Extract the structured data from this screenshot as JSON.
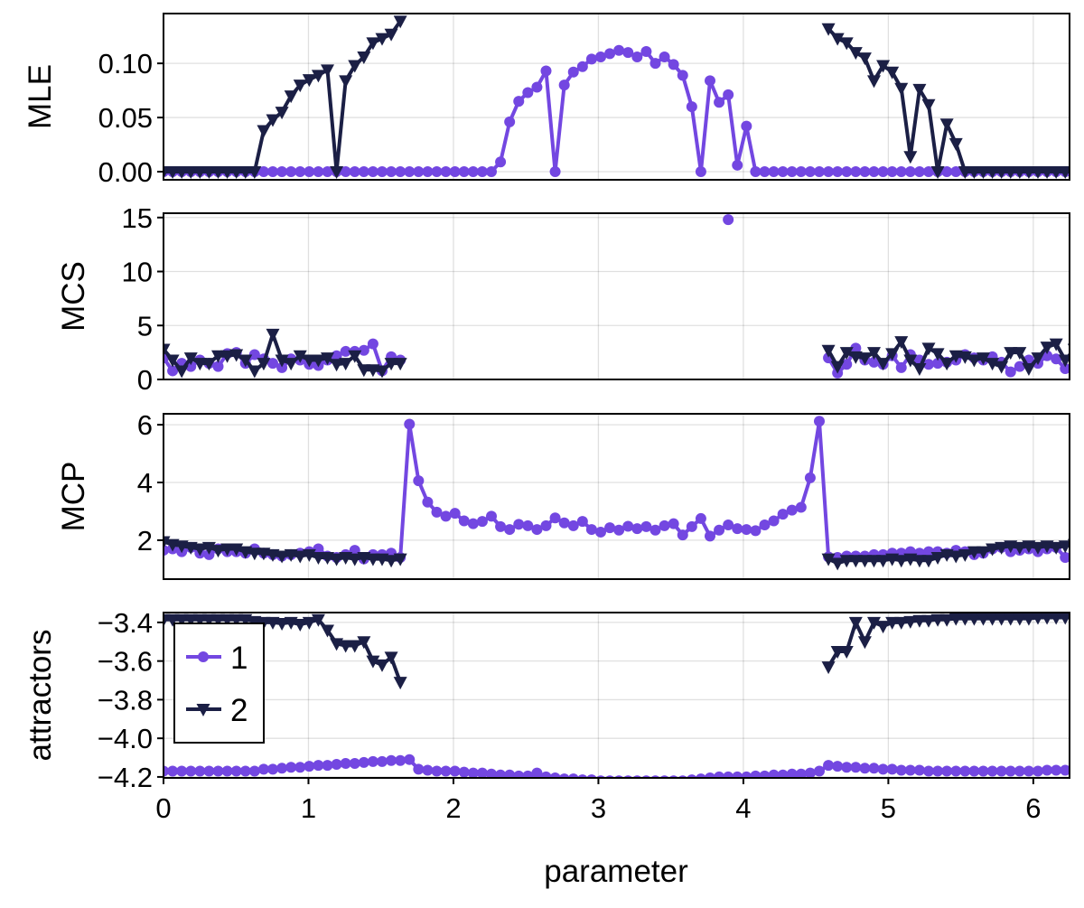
{
  "chart_data": [
    {
      "type": "line",
      "ylabel": "MLE",
      "xlim": [
        0,
        6.25
      ],
      "ylim": [
        -0.0075,
        0.146
      ],
      "yticks": [
        "0.00",
        "0.05",
        "0.10"
      ],
      "ytick_values": [
        0,
        0.05,
        0.1
      ],
      "grid": true,
      "x": {
        "from": 0,
        "to": 6.2832,
        "n": 101
      },
      "series": [
        {
          "name": "1",
          "values": [
            0,
            0,
            0,
            0,
            0,
            0,
            0,
            0,
            0,
            0,
            0,
            0,
            0,
            0,
            0,
            0,
            0,
            0,
            0,
            0,
            0,
            0,
            0,
            0,
            0,
            0,
            0,
            0,
            0,
            0,
            0,
            0,
            0,
            0,
            0,
            0,
            0,
            0.009,
            0.046,
            0.065,
            0.073,
            0.078,
            0.093,
            0,
            0.08,
            0.092,
            0.097,
            0.104,
            0.106,
            0.109,
            0.112,
            0.11,
            0.106,
            0.111,
            0.1,
            0.106,
            0.099,
            0.089,
            0.06,
            0,
            0.084,
            0.064,
            0.071,
            0.006,
            0.042,
            0,
            0,
            0,
            0,
            0,
            0,
            0,
            0,
            0,
            0,
            0,
            0,
            0,
            0,
            0,
            0,
            0,
            0,
            0,
            0,
            0,
            0,
            0,
            0,
            0,
            0,
            0,
            0,
            0,
            0,
            0,
            0,
            0,
            0,
            0,
            0
          ]
        },
        {
          "name": "2",
          "values": [
            0,
            0,
            0,
            0,
            0,
            0,
            0,
            0,
            0,
            0,
            0,
            0.038,
            0.048,
            0.055,
            0.07,
            0.08,
            0.085,
            0.089,
            0.094,
            0,
            0.084,
            0.098,
            0.106,
            0.119,
            0.123,
            0.127,
            0.139,
            null,
            null,
            null,
            null,
            null,
            null,
            null,
            null,
            null,
            null,
            null,
            null,
            null,
            null,
            null,
            null,
            null,
            null,
            null,
            null,
            null,
            null,
            null,
            null,
            null,
            null,
            null,
            null,
            null,
            null,
            null,
            null,
            null,
            null,
            null,
            null,
            null,
            null,
            null,
            null,
            null,
            null,
            null,
            null,
            null,
            null,
            0.132,
            0.123,
            0.119,
            0.11,
            0.105,
            0.084,
            0.098,
            0.092,
            0.077,
            0.014,
            0.076,
            0.062,
            0,
            0.044,
            0.026,
            0,
            0,
            0,
            0,
            0,
            0,
            0,
            0,
            0,
            0,
            0,
            0,
            0
          ]
        }
      ]
    },
    {
      "type": "line",
      "ylabel": "MCS",
      "xlim": [
        0,
        6.25
      ],
      "ylim": [
        0,
        15.4
      ],
      "yticks": [
        "0",
        "5",
        "10",
        "15"
      ],
      "ytick_values": [
        0,
        5,
        10,
        15
      ],
      "grid": true,
      "x": {
        "from": 0,
        "to": 6.2832,
        "n": 101
      },
      "series": [
        {
          "name": "1",
          "values": [
            2.0,
            0.8,
            1.5,
            1.2,
            1.8,
            1.5,
            1.2,
            2.4,
            2.5,
            1.5,
            2.3,
            1.9,
            1.5,
            1.1,
            1.9,
            1.8,
            1.4,
            1.3,
            1.8,
            2.2,
            2.6,
            2.6,
            2.7,
            3.3,
            0.8,
            2.1,
            1.8,
            null,
            null,
            null,
            null,
            null,
            null,
            null,
            null,
            null,
            null,
            null,
            null,
            null,
            null,
            null,
            null,
            null,
            null,
            null,
            null,
            null,
            null,
            null,
            null,
            null,
            null,
            null,
            null,
            null,
            null,
            null,
            null,
            null,
            null,
            null,
            14.8,
            null,
            null,
            null,
            null,
            null,
            null,
            null,
            null,
            null,
            null,
            2.0,
            0.6,
            1.4,
            2.9,
            1.8,
            1.6,
            1.4,
            2.2,
            1.1,
            2.3,
            1.8,
            1.4,
            1.5,
            1.6,
            1.8,
            2.3,
            2.0,
            1.8,
            2.1,
            1.6,
            0.7,
            1.2,
            1.8,
            1.5,
            2.2,
            1.9,
            1.0,
            0.8
          ]
        },
        {
          "name": "2",
          "values": [
            2.8,
            1.8,
            0.8,
            2.0,
            1.5,
            1.5,
            2.2,
            2.2,
            2.3,
            1.8,
            0.8,
            1.5,
            4.2,
            1.8,
            1.5,
            2.2,
            1.8,
            1.8,
            2.0,
            1.4,
            1.5,
            2.2,
            0.9,
            0.9,
            0.8,
            1.5,
            1.5,
            null,
            null,
            null,
            null,
            null,
            null,
            null,
            null,
            null,
            null,
            null,
            null,
            null,
            null,
            null,
            null,
            null,
            null,
            null,
            null,
            null,
            null,
            null,
            null,
            null,
            null,
            null,
            null,
            null,
            null,
            null,
            null,
            null,
            null,
            null,
            null,
            null,
            null,
            null,
            null,
            null,
            null,
            null,
            null,
            null,
            null,
            2.7,
            1.2,
            2.5,
            2.1,
            2.0,
            2.5,
            1.5,
            2.4,
            3.5,
            1.8,
            1.0,
            2.9,
            2.4,
            1.5,
            2.2,
            2.1,
            1.8,
            2.0,
            1.5,
            1.2,
            2.5,
            2.5,
            1.0,
            2.0,
            3.0,
            3.3,
            1.8,
            2.8
          ]
        }
      ]
    },
    {
      "type": "line",
      "ylabel": "MCP",
      "xlim": [
        0,
        6.25
      ],
      "ylim": [
        0.65,
        6.38
      ],
      "yticks": [
        "2",
        "4",
        "6"
      ],
      "ytick_values": [
        2,
        4,
        6
      ],
      "grid": true,
      "x": {
        "from": 0,
        "to": 6.2832,
        "n": 101
      },
      "series": [
        {
          "name": "1",
          "values": [
            1.65,
            1.7,
            1.6,
            1.75,
            1.55,
            1.5,
            1.7,
            1.6,
            1.6,
            1.55,
            1.7,
            1.55,
            1.5,
            1.45,
            1.5,
            1.55,
            1.6,
            1.7,
            1.45,
            1.4,
            1.5,
            1.65,
            1.35,
            1.5,
            1.5,
            1.55,
            1.4,
            6.02,
            4.06,
            3.32,
            2.97,
            2.83,
            2.93,
            2.67,
            2.57,
            2.65,
            2.83,
            2.47,
            2.37,
            2.55,
            2.5,
            2.37,
            2.5,
            2.77,
            2.6,
            2.5,
            2.65,
            2.37,
            2.28,
            2.43,
            2.35,
            2.48,
            2.4,
            2.47,
            2.35,
            2.5,
            2.57,
            2.18,
            2.47,
            2.75,
            2.14,
            2.35,
            2.53,
            2.4,
            2.37,
            2.33,
            2.53,
            2.67,
            2.9,
            3.04,
            3.14,
            4.16,
            6.12,
            1.42,
            1.4,
            1.45,
            1.45,
            1.45,
            1.5,
            1.5,
            1.55,
            1.55,
            1.6,
            1.55,
            1.6,
            1.6,
            1.55,
            1.65,
            1.6,
            1.5,
            1.55,
            1.7,
            1.75,
            1.6,
            1.65,
            1.7,
            1.6,
            1.7,
            1.75,
            1.4,
            1.5
          ]
        },
        {
          "name": "2",
          "values": [
            1.95,
            1.85,
            1.8,
            1.75,
            1.7,
            1.75,
            1.65,
            1.7,
            1.7,
            1.6,
            1.55,
            1.55,
            1.5,
            1.45,
            1.5,
            1.45,
            1.5,
            1.4,
            1.4,
            1.35,
            1.4,
            1.35,
            1.4,
            1.35,
            1.35,
            1.3,
            1.35,
            null,
            null,
            null,
            null,
            null,
            null,
            null,
            null,
            null,
            null,
            null,
            null,
            null,
            null,
            null,
            null,
            null,
            null,
            null,
            null,
            null,
            null,
            null,
            null,
            null,
            null,
            null,
            null,
            null,
            null,
            null,
            null,
            null,
            null,
            null,
            null,
            null,
            null,
            null,
            null,
            null,
            null,
            null,
            null,
            null,
            null,
            1.35,
            1.2,
            1.3,
            1.3,
            1.3,
            1.3,
            1.3,
            1.35,
            1.3,
            1.35,
            1.3,
            1.3,
            1.4,
            1.5,
            1.45,
            1.5,
            1.6,
            1.6,
            1.7,
            1.75,
            1.8,
            1.75,
            1.8,
            1.75,
            1.8,
            1.75,
            1.8,
            1.85
          ]
        }
      ]
    },
    {
      "type": "line",
      "ylabel": "attractors",
      "xlabel": "parameter",
      "xlim": [
        0,
        6.25
      ],
      "ylim": [
        -4.205,
        -3.349
      ],
      "yticks": [
        "−3.4",
        "−3.6",
        "−3.8",
        "−4.0",
        "−4.2"
      ],
      "ytick_values": [
        -3.4,
        -3.6,
        -3.8,
        -4.0,
        -4.2
      ],
      "xticks": [
        "0",
        "1",
        "2",
        "3",
        "4",
        "5",
        "6"
      ],
      "xtick_values": [
        0,
        1,
        2,
        3,
        4,
        5,
        6
      ],
      "grid": true,
      "legend": {
        "placement": "top-left",
        "entries": [
          "1",
          "2"
        ]
      },
      "x": {
        "from": 0,
        "to": 6.2832,
        "n": 101
      },
      "series": [
        {
          "name": "1",
          "values": [
            -4.17,
            -4.17,
            -4.17,
            -4.17,
            -4.17,
            -4.17,
            -4.17,
            -4.17,
            -4.17,
            -4.17,
            -4.17,
            -4.16,
            -4.16,
            -4.155,
            -4.15,
            -4.15,
            -4.145,
            -4.14,
            -4.14,
            -4.135,
            -4.13,
            -4.13,
            -4.125,
            -4.12,
            -4.12,
            -4.115,
            -4.115,
            -4.11,
            -4.16,
            -4.165,
            -4.17,
            -4.17,
            -4.17,
            -4.175,
            -4.18,
            -4.18,
            -4.185,
            -4.19,
            -4.19,
            -4.195,
            -4.195,
            -4.18,
            -4.2,
            -4.205,
            -4.21,
            -4.21,
            -4.215,
            -4.215,
            -4.22,
            -4.22,
            -4.22,
            -4.22,
            -4.22,
            -4.22,
            -4.22,
            -4.22,
            -4.22,
            -4.22,
            -4.215,
            -4.21,
            -4.205,
            -4.2,
            -4.2,
            -4.2,
            -4.2,
            -4.195,
            -4.195,
            -4.19,
            -4.19,
            -4.185,
            -4.185,
            -4.18,
            -4.17,
            -4.14,
            -4.145,
            -4.15,
            -4.15,
            -4.155,
            -4.155,
            -4.16,
            -4.16,
            -4.165,
            -4.165,
            -4.165,
            -4.17,
            -4.17,
            -4.17,
            -4.17,
            -4.17,
            -4.17,
            -4.17,
            -4.17,
            -4.17,
            -4.17,
            -4.17,
            -4.17,
            -4.17,
            -4.165,
            -4.165,
            -4.165,
            -4.165
          ]
        },
        {
          "name": "2",
          "values": [
            -3.385,
            -3.385,
            -3.385,
            -3.385,
            -3.385,
            -3.385,
            -3.385,
            -3.385,
            -3.385,
            -3.385,
            -3.395,
            -3.4,
            -3.4,
            -3.405,
            -3.4,
            -3.41,
            -3.4,
            -3.385,
            -3.44,
            -3.51,
            -3.52,
            -3.52,
            -3.5,
            -3.6,
            -3.62,
            -3.58,
            -3.71,
            null,
            null,
            null,
            null,
            null,
            null,
            null,
            null,
            null,
            null,
            null,
            null,
            null,
            null,
            null,
            null,
            null,
            null,
            null,
            null,
            null,
            null,
            null,
            null,
            null,
            null,
            null,
            null,
            null,
            null,
            null,
            null,
            null,
            null,
            null,
            null,
            null,
            null,
            null,
            null,
            null,
            null,
            null,
            null,
            null,
            null,
            -3.63,
            -3.55,
            -3.55,
            -3.4,
            -3.5,
            -3.4,
            -3.42,
            -3.4,
            -3.4,
            -3.395,
            -3.39,
            -3.39,
            -3.385,
            -3.385,
            -3.38,
            -3.38,
            -3.38,
            -3.38,
            -3.38,
            -3.38,
            -3.38,
            -3.38,
            -3.38,
            -3.375,
            -3.375,
            -3.375,
            -3.375,
            -3.375
          ]
        }
      ]
    }
  ],
  "colors": {
    "series_1": "#7347e1",
    "series_2": "#1b1f45"
  },
  "markers": {
    "series_1": "circle",
    "series_2": "triangle-down"
  }
}
